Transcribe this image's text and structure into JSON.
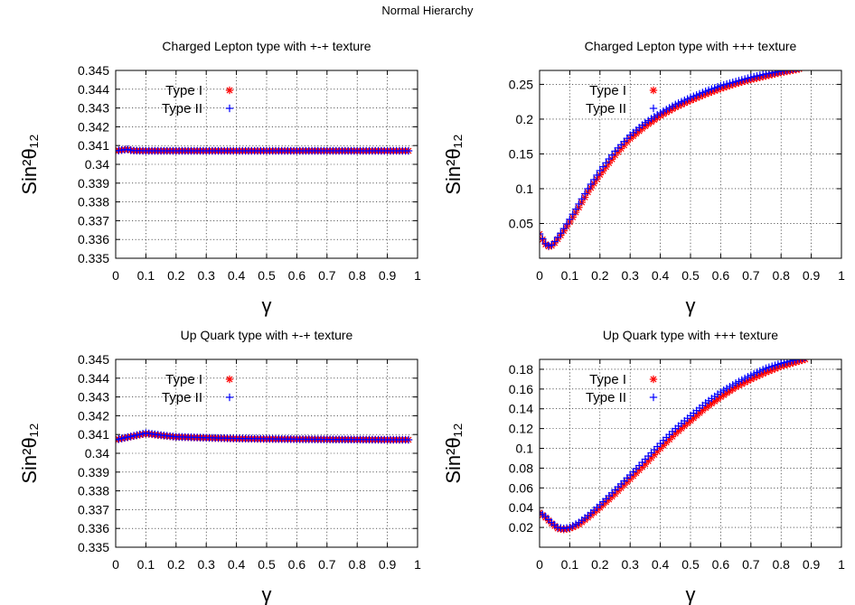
{
  "figure": {
    "title": "Normal Hierarchy"
  },
  "colors": {
    "type_i": "#ff0000",
    "type_ii": "#0000ff",
    "grid": "#000000"
  },
  "chart_data": [
    {
      "type": "scatter",
      "title": "Charged Lepton type with +-+ texture",
      "xlabel": "γ",
      "ylabel": "Sin²θ₁₂",
      "xlim": [
        0,
        1
      ],
      "ylim": [
        0.335,
        0.345
      ],
      "xticks": [
        "0",
        "0.1",
        "0.2",
        "0.3",
        "0.4",
        "0.5",
        "0.6",
        "0.7",
        "0.8",
        "0.9",
        "1"
      ],
      "yticks": [
        "0.345",
        "0.344",
        "0.343",
        "0.342",
        "0.341",
        "0.34",
        "0.339",
        "0.338",
        "0.337",
        "0.336",
        "0.335"
      ],
      "grid": true,
      "legend": "top-left",
      "series": [
        {
          "name": "Type I",
          "marker": "asterisk",
          "color": "#ff0000",
          "points": [
            [
              0.0,
              0.34072
            ],
            [
              0.04,
              0.3408
            ],
            [
              0.05,
              0.34075
            ],
            [
              0.06,
              0.34073
            ],
            [
              0.1,
              0.34072
            ],
            [
              0.2,
              0.34072
            ],
            [
              0.3,
              0.34072
            ],
            [
              0.4,
              0.34072
            ],
            [
              0.5,
              0.34072
            ],
            [
              0.6,
              0.34072
            ],
            [
              0.7,
              0.34072
            ],
            [
              0.8,
              0.34072
            ],
            [
              0.9,
              0.34072
            ],
            [
              0.97,
              0.34072
            ]
          ]
        },
        {
          "name": "Type II",
          "marker": "plus",
          "color": "#0000ff",
          "points": [
            [
              0.0,
              0.34072
            ],
            [
              0.04,
              0.3408
            ],
            [
              0.05,
              0.34075
            ],
            [
              0.06,
              0.34073
            ],
            [
              0.1,
              0.34072
            ],
            [
              0.2,
              0.34072
            ],
            [
              0.3,
              0.34072
            ],
            [
              0.4,
              0.34072
            ],
            [
              0.5,
              0.34072
            ],
            [
              0.6,
              0.34072
            ],
            [
              0.7,
              0.34072
            ],
            [
              0.8,
              0.34072
            ],
            [
              0.9,
              0.34072
            ],
            [
              0.97,
              0.34072
            ]
          ]
        }
      ]
    },
    {
      "type": "scatter",
      "title": "Charged Lepton type with +++ texture",
      "xlabel": "γ",
      "ylabel": "Sin²θ₁₂",
      "xlim": [
        0,
        1
      ],
      "ylim": [
        0,
        0.27
      ],
      "xticks": [
        "0",
        "0.1",
        "0.2",
        "0.3",
        "0.4",
        "0.5",
        "0.6",
        "0.7",
        "0.8",
        "0.9",
        "1"
      ],
      "yticks": [
        "0.25",
        "0.2",
        "0.15",
        "0.1",
        "0.05"
      ],
      "grid": true,
      "legend": "top-left",
      "series": [
        {
          "name": "Type I",
          "marker": "asterisk",
          "color": "#ff0000",
          "points": [
            [
              0.0,
              0.035
            ],
            [
              0.01,
              0.027
            ],
            [
              0.02,
              0.02
            ],
            [
              0.03,
              0.017
            ],
            [
              0.04,
              0.018
            ],
            [
              0.05,
              0.022
            ],
            [
              0.07,
              0.033
            ],
            [
              0.1,
              0.052
            ],
            [
              0.13,
              0.073
            ],
            [
              0.16,
              0.095
            ],
            [
              0.2,
              0.12
            ],
            [
              0.25,
              0.148
            ],
            [
              0.3,
              0.172
            ],
            [
              0.35,
              0.19
            ],
            [
              0.4,
              0.205
            ],
            [
              0.45,
              0.217
            ],
            [
              0.5,
              0.227
            ],
            [
              0.55,
              0.236
            ],
            [
              0.6,
              0.244
            ],
            [
              0.65,
              0.251
            ],
            [
              0.7,
              0.257
            ],
            [
              0.75,
              0.262
            ],
            [
              0.8,
              0.267
            ],
            [
              0.86,
              0.272
            ]
          ]
        },
        {
          "name": "Type II",
          "marker": "plus",
          "color": "#0000ff",
          "points": [
            [
              0.0,
              0.035
            ],
            [
              0.01,
              0.028
            ],
            [
              0.02,
              0.021
            ],
            [
              0.03,
              0.018
            ],
            [
              0.04,
              0.019
            ],
            [
              0.05,
              0.024
            ],
            [
              0.07,
              0.036
            ],
            [
              0.1,
              0.056
            ],
            [
              0.13,
              0.078
            ],
            [
              0.16,
              0.1
            ],
            [
              0.2,
              0.126
            ],
            [
              0.25,
              0.154
            ],
            [
              0.3,
              0.177
            ],
            [
              0.35,
              0.195
            ],
            [
              0.4,
              0.209
            ],
            [
              0.45,
              0.221
            ],
            [
              0.5,
              0.231
            ],
            [
              0.55,
              0.24
            ],
            [
              0.6,
              0.248
            ],
            [
              0.65,
              0.254
            ],
            [
              0.7,
              0.26
            ],
            [
              0.75,
              0.265
            ],
            [
              0.8,
              0.269
            ],
            [
              0.86,
              0.274
            ]
          ]
        }
      ]
    },
    {
      "type": "scatter",
      "title": "Up Quark type with +-+ texture",
      "xlabel": "γ",
      "ylabel": "Sin²θ₁₂",
      "xlim": [
        0,
        1
      ],
      "ylim": [
        0.335,
        0.345
      ],
      "xticks": [
        "0",
        "0.1",
        "0.2",
        "0.3",
        "0.4",
        "0.5",
        "0.6",
        "0.7",
        "0.8",
        "0.9",
        "1"
      ],
      "yticks": [
        "0.345",
        "0.344",
        "0.343",
        "0.342",
        "0.341",
        "0.34",
        "0.339",
        "0.338",
        "0.337",
        "0.336",
        "0.335"
      ],
      "grid": true,
      "legend": "top-left",
      "series": [
        {
          "name": "Type I",
          "marker": "asterisk",
          "color": "#ff0000",
          "points": [
            [
              0.0,
              0.34072
            ],
            [
              0.1,
              0.34105
            ],
            [
              0.15,
              0.34095
            ],
            [
              0.2,
              0.34087
            ],
            [
              0.3,
              0.34082
            ],
            [
              0.4,
              0.34078
            ],
            [
              0.5,
              0.34076
            ],
            [
              0.6,
              0.34075
            ],
            [
              0.7,
              0.34074
            ],
            [
              0.8,
              0.34073
            ],
            [
              0.9,
              0.34072
            ],
            [
              0.97,
              0.34072
            ]
          ]
        },
        {
          "name": "Type II",
          "marker": "plus",
          "color": "#0000ff",
          "points": [
            [
              0.0,
              0.34072
            ],
            [
              0.1,
              0.34108
            ],
            [
              0.15,
              0.34097
            ],
            [
              0.2,
              0.34088
            ],
            [
              0.3,
              0.34083
            ],
            [
              0.4,
              0.34079
            ],
            [
              0.5,
              0.34077
            ],
            [
              0.6,
              0.34075
            ],
            [
              0.7,
              0.34074
            ],
            [
              0.8,
              0.34073
            ],
            [
              0.9,
              0.34072
            ],
            [
              0.97,
              0.34072
            ]
          ]
        }
      ]
    },
    {
      "type": "scatter",
      "title": "Up Quark type with +++ texture",
      "xlabel": "γ",
      "ylabel": "Sin²θ₁₂",
      "xlim": [
        0,
        1
      ],
      "ylim": [
        0,
        0.19
      ],
      "xticks": [
        "0",
        "0.1",
        "0.2",
        "0.3",
        "0.4",
        "0.5",
        "0.6",
        "0.7",
        "0.8",
        "0.9",
        "1"
      ],
      "yticks": [
        "0.18",
        "0.16",
        "0.14",
        "0.12",
        "0.1",
        "0.08",
        "0.06",
        "0.04",
        "0.02"
      ],
      "grid": true,
      "legend": "top-left",
      "series": [
        {
          "name": "Type I",
          "marker": "asterisk",
          "color": "#ff0000",
          "points": [
            [
              0.0,
              0.035
            ],
            [
              0.02,
              0.03
            ],
            [
              0.04,
              0.024
            ],
            [
              0.06,
              0.019
            ],
            [
              0.08,
              0.018
            ],
            [
              0.1,
              0.019
            ],
            [
              0.13,
              0.023
            ],
            [
              0.16,
              0.03
            ],
            [
              0.2,
              0.04
            ],
            [
              0.25,
              0.054
            ],
            [
              0.3,
              0.069
            ],
            [
              0.35,
              0.084
            ],
            [
              0.4,
              0.1
            ],
            [
              0.45,
              0.115
            ],
            [
              0.5,
              0.128
            ],
            [
              0.55,
              0.141
            ],
            [
              0.6,
              0.152
            ],
            [
              0.65,
              0.162
            ],
            [
              0.7,
              0.17
            ],
            [
              0.75,
              0.177
            ],
            [
              0.8,
              0.183
            ],
            [
              0.88,
              0.19
            ]
          ]
        },
        {
          "name": "Type II",
          "marker": "plus",
          "color": "#0000ff",
          "points": [
            [
              0.0,
              0.035
            ],
            [
              0.02,
              0.031
            ],
            [
              0.04,
              0.025
            ],
            [
              0.06,
              0.02
            ],
            [
              0.08,
              0.019
            ],
            [
              0.1,
              0.02
            ],
            [
              0.13,
              0.025
            ],
            [
              0.16,
              0.032
            ],
            [
              0.2,
              0.043
            ],
            [
              0.25,
              0.058
            ],
            [
              0.3,
              0.073
            ],
            [
              0.35,
              0.089
            ],
            [
              0.4,
              0.105
            ],
            [
              0.45,
              0.12
            ],
            [
              0.5,
              0.133
            ],
            [
              0.55,
              0.146
            ],
            [
              0.6,
              0.157
            ],
            [
              0.65,
              0.166
            ],
            [
              0.7,
              0.174
            ],
            [
              0.75,
              0.181
            ],
            [
              0.8,
              0.186
            ],
            [
              0.88,
              0.192
            ]
          ]
        }
      ]
    }
  ]
}
